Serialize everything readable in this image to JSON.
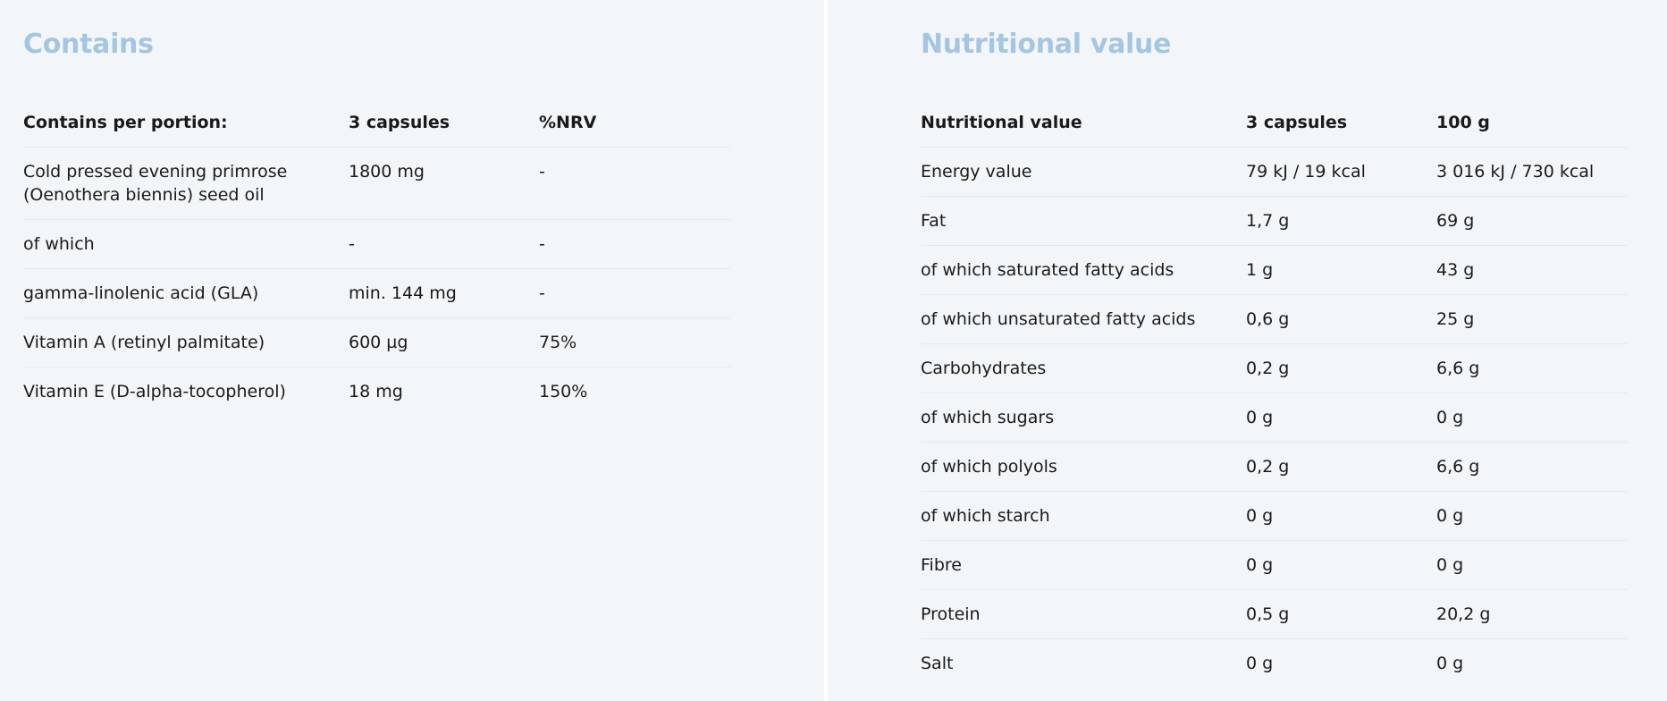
{
  "left": {
    "title": "Contains",
    "table": {
      "header": [
        "Contains per portion:",
        "3 capsules",
        "%NRV"
      ],
      "rows": [
        [
          "Cold pressed evening primrose (Oenothera biennis) seed oil",
          "1800 mg",
          "-"
        ],
        [
          "of which",
          "-",
          "-"
        ],
        [
          "gamma-linolenic acid (GLA)",
          "min. 144 mg",
          "-"
        ],
        [
          "Vitamin A (retinyl palmitate)",
          "600 µg",
          "75%"
        ],
        [
          "Vitamin E (D-alpha-tocopherol)",
          "18 mg",
          "150%"
        ]
      ]
    }
  },
  "right": {
    "title": "Nutritional value",
    "table": {
      "header": [
        "Nutritional value",
        "3 capsules",
        "100 g"
      ],
      "rows": [
        [
          "Energy value",
          "79 kJ / 19 kcal",
          "3 016 kJ / 730 kcal"
        ],
        [
          "Fat",
          "1,7 g",
          "69 g"
        ],
        [
          "of which saturated fatty acids",
          "1 g",
          "43 g"
        ],
        [
          "of which unsaturated fatty acids",
          "0,6 g",
          "25 g"
        ],
        [
          "Carbohydrates",
          "0,2 g",
          "6,6 g"
        ],
        [
          "of which sugars",
          "0 g",
          "0 g"
        ],
        [
          "of which polyols",
          "0,2 g",
          "6,6 g"
        ],
        [
          "of which starch",
          "0 g",
          "0 g"
        ],
        [
          "Fibre",
          "0 g",
          "0 g"
        ],
        [
          "Protein",
          "0,5 g",
          "20,2 g"
        ],
        [
          "Salt",
          "0 g",
          "0 g"
        ]
      ]
    }
  }
}
